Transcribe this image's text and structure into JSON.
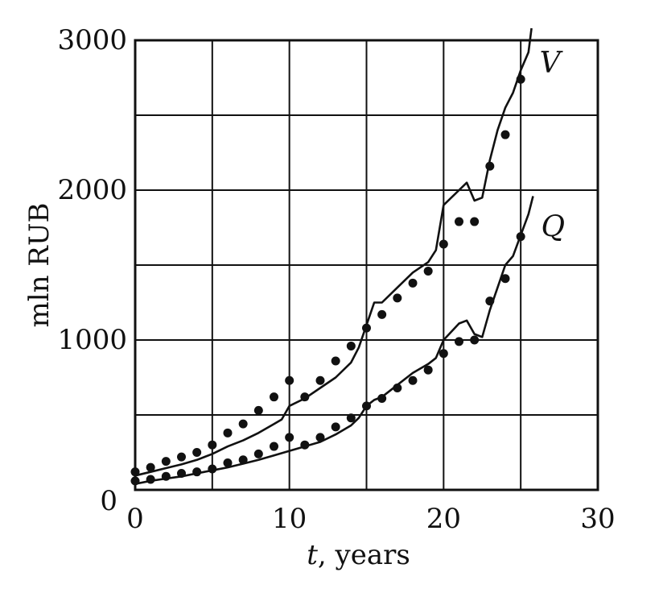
{
  "chart_data": {
    "type": "line",
    "title": "",
    "xlabel_var": "t",
    "xlabel_rest": ", years",
    "ylabel": "mln RUB",
    "xlim": [
      0,
      30
    ],
    "ylim": [
      0,
      3000
    ],
    "xticks": [
      0,
      10,
      20,
      30
    ],
    "yticks": [
      1000,
      2000,
      3000
    ],
    "y_origin_label": "0",
    "grid": true,
    "grid_x_step": 5,
    "grid_y_step": 500,
    "colors": {
      "line": "#111111",
      "grid": "#111111",
      "points": "#111111"
    },
    "series": [
      {
        "name": "V",
        "model_line": [
          [
            0,
            95
          ],
          [
            1,
            120
          ],
          [
            2,
            145
          ],
          [
            3,
            170
          ],
          [
            4,
            200
          ],
          [
            5,
            240
          ],
          [
            6,
            290
          ],
          [
            7,
            330
          ],
          [
            8,
            380
          ],
          [
            9,
            440
          ],
          [
            9.5,
            470
          ],
          [
            10,
            560
          ],
          [
            11,
            610
          ],
          [
            12,
            680
          ],
          [
            13,
            750
          ],
          [
            14,
            850
          ],
          [
            14.5,
            950
          ],
          [
            15,
            1100
          ],
          [
            15.5,
            1250
          ],
          [
            16,
            1250
          ],
          [
            17,
            1350
          ],
          [
            18,
            1450
          ],
          [
            19,
            1520
          ],
          [
            19.5,
            1600
          ],
          [
            20,
            1900
          ],
          [
            21,
            2000
          ],
          [
            21.5,
            2050
          ],
          [
            22,
            1930
          ],
          [
            22.5,
            1950
          ],
          [
            23,
            2200
          ],
          [
            23.5,
            2400
          ],
          [
            24,
            2550
          ],
          [
            24.5,
            2650
          ],
          [
            25,
            2800
          ],
          [
            25.5,
            2920
          ],
          [
            25.7,
            3080
          ]
        ],
        "observed_points": [
          [
            0,
            120
          ],
          [
            1,
            150
          ],
          [
            2,
            190
          ],
          [
            3,
            220
          ],
          [
            4,
            250
          ],
          [
            5,
            300
          ],
          [
            6,
            380
          ],
          [
            7,
            440
          ],
          [
            8,
            530
          ],
          [
            9,
            620
          ],
          [
            10,
            730
          ],
          [
            11,
            620
          ],
          [
            12,
            730
          ],
          [
            13,
            860
          ],
          [
            14,
            960
          ],
          [
            15,
            1080
          ],
          [
            16,
            1170
          ],
          [
            17,
            1280
          ],
          [
            18,
            1380
          ],
          [
            19,
            1460
          ],
          [
            20,
            1640
          ],
          [
            21,
            1790
          ],
          [
            22,
            1790
          ],
          [
            23,
            2160
          ],
          [
            24,
            2370
          ],
          [
            25,
            2740
          ]
        ]
      },
      {
        "name": "Q",
        "model_line": [
          [
            0,
            40
          ],
          [
            1,
            60
          ],
          [
            2,
            75
          ],
          [
            3,
            90
          ],
          [
            4,
            110
          ],
          [
            5,
            130
          ],
          [
            6,
            150
          ],
          [
            7,
            175
          ],
          [
            8,
            200
          ],
          [
            9,
            230
          ],
          [
            10,
            260
          ],
          [
            11,
            290
          ],
          [
            12,
            320
          ],
          [
            13,
            370
          ],
          [
            14,
            430
          ],
          [
            14.5,
            480
          ],
          [
            15,
            560
          ],
          [
            15.5,
            600
          ],
          [
            16,
            620
          ],
          [
            17,
            700
          ],
          [
            18,
            780
          ],
          [
            19,
            840
          ],
          [
            19.5,
            880
          ],
          [
            20,
            1000
          ],
          [
            21,
            1110
          ],
          [
            21.5,
            1130
          ],
          [
            22,
            1040
          ],
          [
            22.5,
            1020
          ],
          [
            23,
            1200
          ],
          [
            23.5,
            1350
          ],
          [
            24,
            1500
          ],
          [
            24.5,
            1560
          ],
          [
            25,
            1700
          ],
          [
            25.5,
            1840
          ],
          [
            25.8,
            1960
          ]
        ],
        "observed_points": [
          [
            0,
            60
          ],
          [
            1,
            70
          ],
          [
            2,
            90
          ],
          [
            3,
            110
          ],
          [
            4,
            120
          ],
          [
            5,
            140
          ],
          [
            6,
            180
          ],
          [
            7,
            200
          ],
          [
            8,
            240
          ],
          [
            9,
            290
          ],
          [
            10,
            350
          ],
          [
            11,
            300
          ],
          [
            12,
            350
          ],
          [
            13,
            420
          ],
          [
            14,
            480
          ],
          [
            15,
            560
          ],
          [
            16,
            610
          ],
          [
            17,
            680
          ],
          [
            18,
            730
          ],
          [
            19,
            800
          ],
          [
            20,
            910
          ],
          [
            21,
            990
          ],
          [
            22,
            1000
          ],
          [
            23,
            1260
          ],
          [
            24,
            1410
          ],
          [
            25,
            1690
          ]
        ]
      }
    ]
  }
}
